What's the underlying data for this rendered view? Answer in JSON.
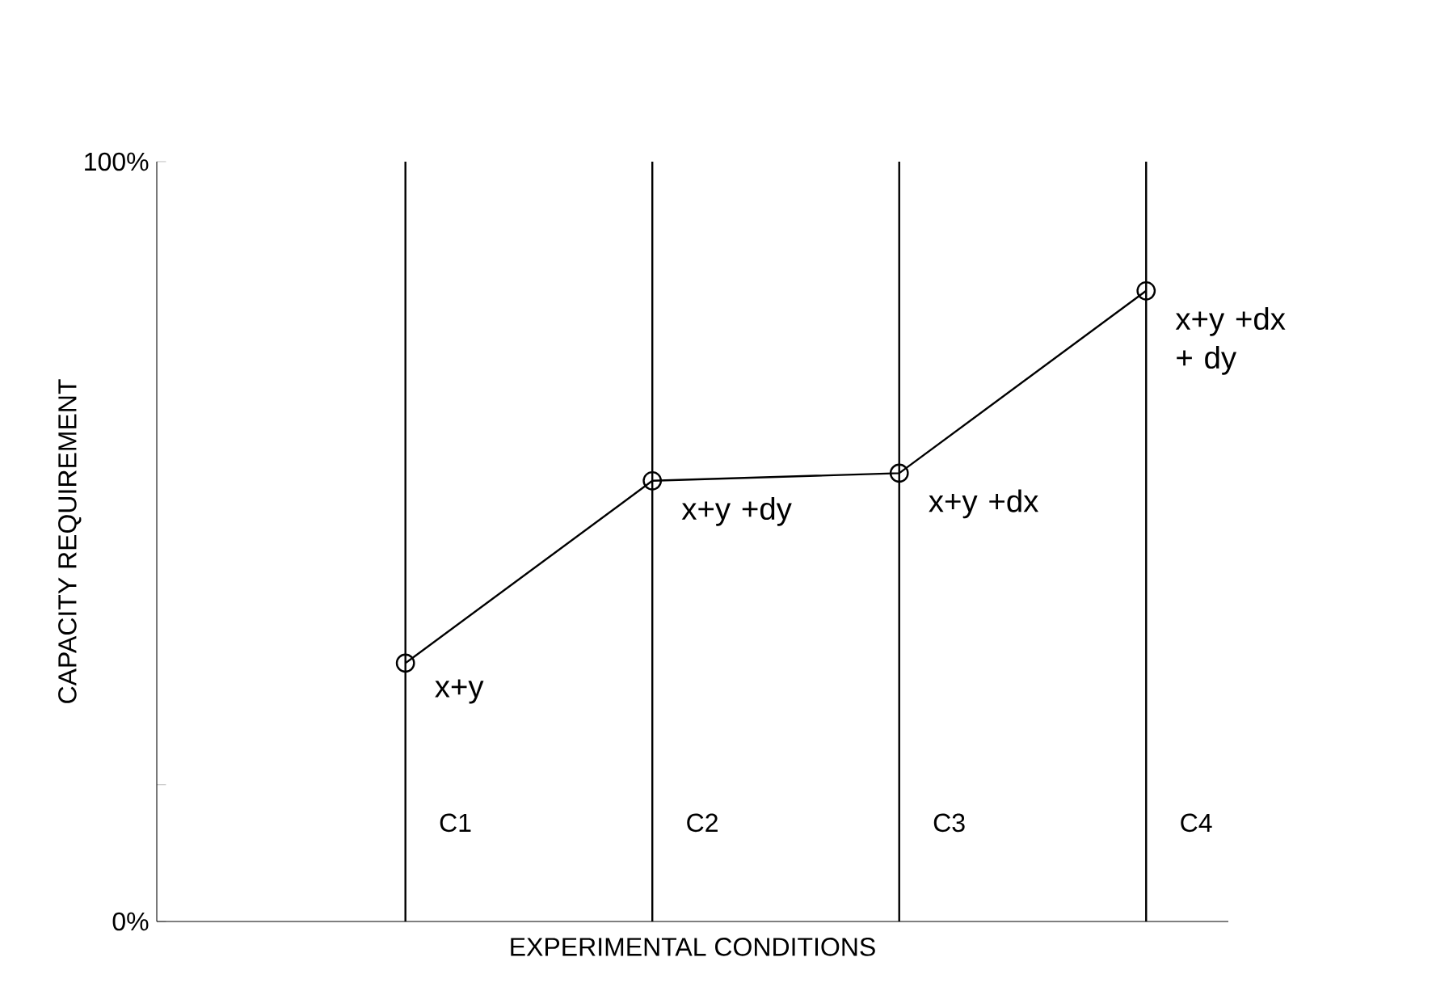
{
  "chart_data": {
    "type": "line",
    "xlabel": "EXPERIMENTAL CONDITIONS",
    "ylabel": "CAPACITY REQUIREMENT",
    "categories": [
      "C1",
      "C2",
      "C3",
      "C4"
    ],
    "series": [
      {
        "color": "#000000",
        "values": [
          34,
          58,
          59,
          83
        ]
      }
    ],
    "ylim": [
      0,
      100
    ],
    "yticks": [
      {
        "value": 0,
        "label": "0%"
      },
      {
        "value": 18,
        "label": null
      },
      {
        "value": 100,
        "label": "100%"
      }
    ],
    "grid": "x",
    "marker": "circle",
    "line_style": "solid",
    "annotations": [
      "x+y",
      "x+y +dy",
      "x+y +dx",
      "x+y +dx + dy"
    ]
  }
}
